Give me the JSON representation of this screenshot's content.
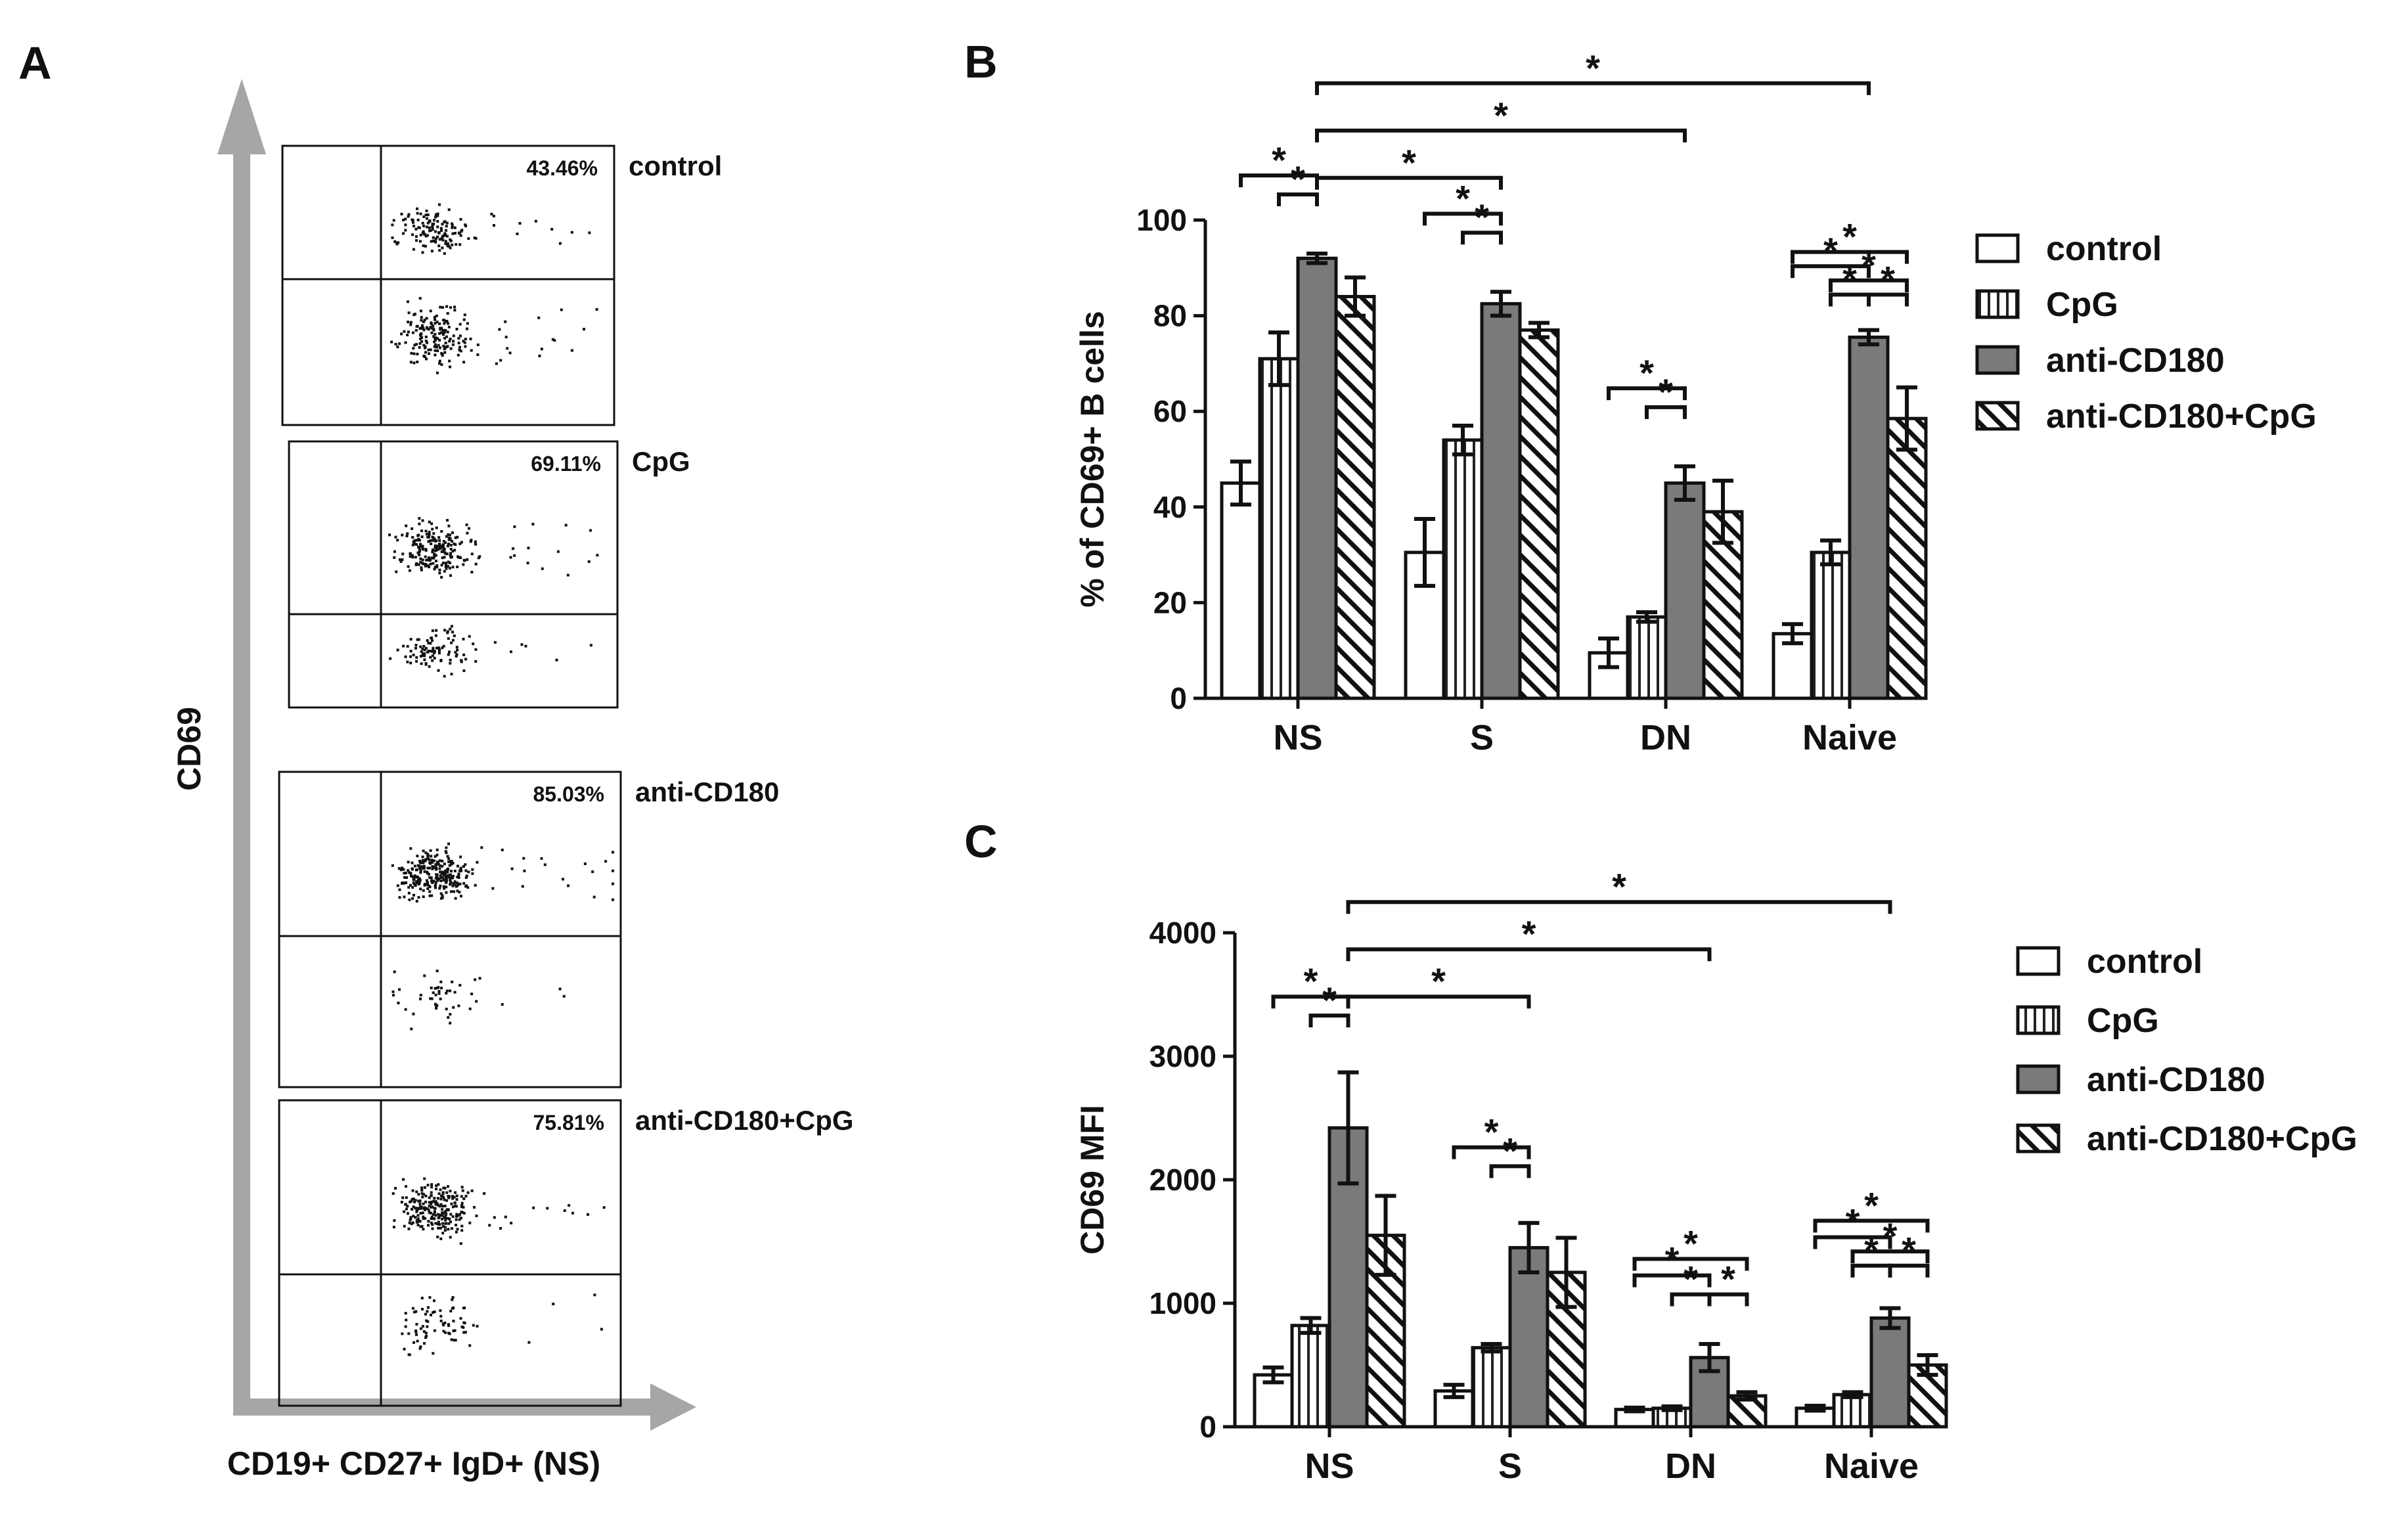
{
  "panel_a": {
    "letter": "A",
    "y_axis_label": "CD69",
    "x_axis_label": "CD19+ CD27+ IgD+ (NS)",
    "plots": [
      {
        "percent": "43.46%",
        "condition": "control",
        "upper_fraction": 0.4346
      },
      {
        "percent": "69.11%",
        "condition": "CpG",
        "upper_fraction": 0.6911
      },
      {
        "percent": "85.03%",
        "condition": "anti-CD180",
        "upper_fraction": 0.8503
      },
      {
        "percent": "75.81%",
        "condition": "anti-CD180+CpG",
        "upper_fraction": 0.7581
      }
    ]
  },
  "legend": [
    "control",
    "CpG",
    "anti-CD180",
    "anti-CD180+CpG"
  ],
  "significance_symbol": "*",
  "chart_data": [
    {
      "panel": "B",
      "type": "bar",
      "title": "",
      "xlabel": "",
      "ylabel": "% of CD69+ B cells",
      "ylim": [
        0,
        100
      ],
      "yticks": [
        0,
        20,
        40,
        60,
        80,
        100
      ],
      "categories": [
        "NS",
        "S",
        "DN",
        "Naive"
      ],
      "series": [
        {
          "name": "control",
          "values": [
            45,
            30.5,
            9.5,
            13.5
          ],
          "errors": [
            4.5,
            7,
            3,
            2
          ]
        },
        {
          "name": "CpG",
          "values": [
            71,
            54,
            17,
            30.5
          ],
          "errors": [
            5.5,
            3,
            1,
            2.5
          ]
        },
        {
          "name": "anti-CD180",
          "values": [
            92,
            82.5,
            45,
            75.5
          ],
          "errors": [
            1,
            2.5,
            3.5,
            1.5
          ]
        },
        {
          "name": "anti-CD180+CpG",
          "values": [
            84,
            77,
            39,
            58.5
          ],
          "errors": [
            4,
            1.5,
            6.5,
            6.5
          ]
        }
      ],
      "significance_brackets": [
        {
          "from": [
            0,
            2
          ],
          "to": [
            3,
            2
          ],
          "level": 3
        },
        {
          "from": [
            0,
            2
          ],
          "to": [
            2,
            2
          ],
          "level": 2
        },
        {
          "from": [
            0,
            2
          ],
          "to": [
            1,
            2
          ],
          "level": 1
        },
        {
          "from": [
            0,
            0
          ],
          "to": [
            0,
            2
          ],
          "level": 0.75
        },
        {
          "from": [
            0,
            1
          ],
          "to": [
            0,
            2
          ],
          "level": 0.35
        },
        {
          "from": [
            1,
            0
          ],
          "to": [
            1,
            2
          ],
          "level": 0.75
        },
        {
          "from": [
            1,
            1
          ],
          "to": [
            1,
            2
          ],
          "level": 0.35
        },
        {
          "from": [
            2,
            0
          ],
          "to": [
            2,
            2
          ],
          "level": 0.75
        },
        {
          "from": [
            2,
            1
          ],
          "to": [
            2,
            2
          ],
          "level": 0.35
        },
        {
          "from": [
            3,
            0
          ],
          "to": [
            3,
            3
          ],
          "level": 0.75
        },
        {
          "from": [
            3,
            0
          ],
          "to": [
            3,
            2
          ],
          "level": 0.45
        },
        {
          "from": [
            3,
            1
          ],
          "to": [
            3,
            3
          ],
          "level": 0.15
        },
        {
          "from": [
            3,
            1
          ],
          "to": [
            3,
            2
          ],
          "level": -0.15
        },
        {
          "from": [
            3,
            2
          ],
          "to": [
            3,
            3
          ],
          "level": -0.15
        }
      ]
    },
    {
      "panel": "C",
      "type": "bar",
      "title": "",
      "xlabel": "",
      "ylabel": "CD69 MFI",
      "ylim": [
        0,
        4000
      ],
      "yticks": [
        0,
        1000,
        2000,
        3000,
        4000
      ],
      "categories": [
        "NS",
        "S",
        "DN",
        "Naive"
      ],
      "series": [
        {
          "name": "control",
          "values": [
            420,
            290,
            140,
            150
          ],
          "errors": [
            60,
            50,
            15,
            20
          ]
        },
        {
          "name": "CpG",
          "values": [
            820,
            640,
            150,
            260
          ],
          "errors": [
            60,
            30,
            15,
            20
          ]
        },
        {
          "name": "anti-CD180",
          "values": [
            2420,
            1450,
            560,
            880
          ],
          "errors": [
            450,
            200,
            110,
            80
          ]
        },
        {
          "name": "anti-CD180+CpG",
          "values": [
            1550,
            1250,
            250,
            500
          ],
          "errors": [
            320,
            280,
            30,
            80
          ]
        }
      ],
      "significance_brackets": [
        {
          "from": [
            0,
            2
          ],
          "to": [
            3,
            2
          ],
          "level": 3
        },
        {
          "from": [
            0,
            2
          ],
          "to": [
            2,
            2
          ],
          "level": 2
        },
        {
          "from": [
            0,
            2
          ],
          "to": [
            1,
            2
          ],
          "level": 1
        },
        {
          "from": [
            0,
            0
          ],
          "to": [
            0,
            2
          ],
          "level": 0.7
        },
        {
          "from": [
            0,
            1
          ],
          "to": [
            0,
            2
          ],
          "level": 0.3
        },
        {
          "from": [
            1,
            0
          ],
          "to": [
            1,
            2
          ],
          "level": 0.7
        },
        {
          "from": [
            1,
            1
          ],
          "to": [
            1,
            2
          ],
          "level": 0.3
        },
        {
          "from": [
            2,
            0
          ],
          "to": [
            2,
            3
          ],
          "level": 0.9
        },
        {
          "from": [
            2,
            0
          ],
          "to": [
            2,
            2
          ],
          "level": 0.55
        },
        {
          "from": [
            2,
            1
          ],
          "to": [
            2,
            2
          ],
          "level": 0.15
        },
        {
          "from": [
            2,
            2
          ],
          "to": [
            2,
            3
          ],
          "level": 0.15
        },
        {
          "from": [
            3,
            0
          ],
          "to": [
            3,
            3
          ],
          "level": 0.95
        },
        {
          "from": [
            3,
            0
          ],
          "to": [
            3,
            2
          ],
          "level": 0.6
        },
        {
          "from": [
            3,
            1
          ],
          "to": [
            3,
            3
          ],
          "level": 0.3
        },
        {
          "from": [
            3,
            1
          ],
          "to": [
            3,
            2
          ],
          "level": 0.0
        },
        {
          "from": [
            3,
            2
          ],
          "to": [
            3,
            3
          ],
          "level": 0.0
        }
      ]
    }
  ]
}
